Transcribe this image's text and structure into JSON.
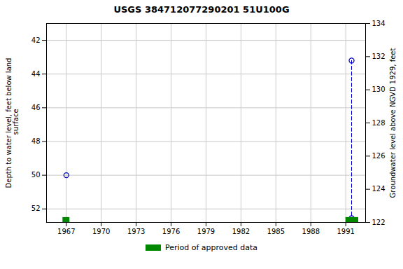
{
  "chart_data": {
    "type": "scatter",
    "title": "USGS 384712077290201 51U100G",
    "ylabel": "Depth to water level, feet below land\n surface",
    "y2label": "Groundwater level above NGVD 1929, feet",
    "xlim": [
      1965.3,
      1992.7
    ],
    "xticks": [
      1967,
      1970,
      1973,
      1976,
      1979,
      1982,
      1985,
      1988,
      1991
    ],
    "ylim": [
      52.8,
      41.0
    ],
    "yticks": [
      42.0,
      44.0,
      46.0,
      48.0,
      50.0,
      52.0
    ],
    "y2lim": [
      122.0,
      134.0
    ],
    "y2ticks": [
      122.0,
      124.0,
      126.0,
      128.0,
      130.0,
      132.0,
      134.0
    ],
    "grid": true,
    "legend": "bottom",
    "series": [
      {
        "type": "line",
        "color": "#0000cc",
        "line_style": "dashed",
        "x": [
          1991.5,
          1991.5
        ],
        "values": [
          43.2,
          52.55
        ]
      },
      {
        "type": "scatter",
        "color": "#0000cc",
        "marker": "circle",
        "x": [
          1967.0,
          1991.5,
          1991.5
        ],
        "values": [
          50.0,
          43.2,
          52.55
        ]
      },
      {
        "type": "span",
        "name": "Period of approved data",
        "color": "#008800",
        "x": [
          1966.7,
          1991.0
        ],
        "widths": [
          0.6,
          1.1
        ]
      }
    ]
  }
}
